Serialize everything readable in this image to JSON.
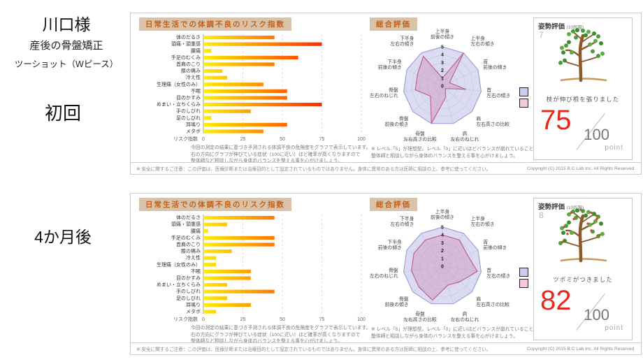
{
  "left": {
    "client_name": "川口様",
    "treatment": "産後の骨盤矯正",
    "plan": "ツーショット（Wピース）"
  },
  "colors": {
    "accent_red": "#e8281c",
    "title_strip_bg": "#d9c3a8",
    "title_text": "#c2601c",
    "bar_gradient_start": "#ffee00",
    "radar_reference_fill": "#dadaf1",
    "radar_reference_stroke": "#9a9ad2",
    "radar_data_stroke": "#c05f98"
  },
  "notes": {
    "bar": [
      "今回の測定の結果に基づき予測される体調不良の危険度をグラフで表示しています。",
      "右の方向にグラフが伸びている症状（100に近い）ほど確率が高くなりますので",
      "整体師など相談しながら身体のバランスを整える事を心がけましょう。"
    ],
    "radar": [
      "※ レベル「5」が理想型。レベル「0」に近いほどバランスが崩れていることを示しています。",
      "整体師と相談しながら身体のバランスを整える事を心がけましょう。"
    ],
    "safety": "※ 安全に関するご注意：この評価は、医療診断または治療目的として設定されているものではありません。身体に異常のある方は医師に相談の上、参考に使ってください。",
    "copyright": "Copyright (C) 2015 B.C Lab Inc. All Rights Reserved."
  },
  "panels": [
    {
      "session_label": "初回",
      "posture": {
        "title": "姿勢評価",
        "scale_note": "(10段階)",
        "level": "7",
        "tree_icon": "young-tree-icon",
        "caption": "枝が伸び根を張りました",
        "score": "75",
        "score_max": "100",
        "unit": "point"
      }
    },
    {
      "session_label": "4か月後",
      "posture": {
        "title": "姿勢評価",
        "scale_note": "(10段階)",
        "level": "8",
        "tree_icon": "budding-tree-icon",
        "caption": "ツボミがつきました",
        "score": "82",
        "score_max": "100",
        "unit": "point"
      }
    }
  ],
  "chart_data": [
    {
      "type": "bar",
      "orientation": "horizontal",
      "title": "日常生活での体調不良のリスク指数",
      "categories": [
        "体のだるさ",
        "頭痛・頭重感",
        "腰痛",
        "手足のむくみ",
        "首肩のこり",
        "膝の痛み",
        "冷え性",
        "生理痛（女性のみ）",
        "不眠",
        "目のかすみ",
        "めまい・立ちくらみ",
        "手のしびれ",
        "足のしびれ",
        "耳鳴り",
        "メタボ"
      ],
      "values": [
        45,
        75,
        5,
        60,
        45,
        12,
        15,
        38,
        53,
        53,
        75,
        30,
        5,
        53,
        38
      ],
      "xlabel": "リスク指数",
      "xlim": [
        0,
        100
      ],
      "xticks": [
        0,
        25,
        50,
        75,
        100
      ],
      "grid": "dashed-vertical"
    },
    {
      "type": "radar",
      "title": "総合評価",
      "categories": [
        "上半身 前後の傾き",
        "上半身 左右の傾き",
        "首 前後の傾き",
        "首 左右の傾き",
        "肩 左右高さの比較",
        "肩 左右のねじれ",
        "骨盤 左右高さの比較",
        "骨盤 前後の傾き",
        "骨盤 左右のねじれ",
        "下半身 前後の傾き",
        "下半身 左右の傾き"
      ],
      "rlim": [
        0,
        5
      ],
      "rticks": [
        0,
        1,
        2,
        3,
        4,
        5
      ],
      "series": [
        {
          "name": "reference-outline",
          "values": [
            5,
            5,
            5,
            5,
            5,
            5,
            5,
            5,
            5,
            5,
            5
          ]
        },
        {
          "name": "measurement",
          "values": [
            1,
            5,
            1,
            3,
            0.5,
            1.5,
            5,
            2,
            3.5,
            3.5,
            4.5
          ]
        }
      ],
      "legend_position": "right"
    },
    {
      "type": "bar",
      "orientation": "horizontal",
      "title": "日常生活での体調不良のリスク指数",
      "categories": [
        "体のだるさ",
        "頭痛・頭重感",
        "腰痛",
        "手足のむくみ",
        "首肩のこり",
        "膝の痛み",
        "冷え性",
        "生理痛（女性のみ）",
        "不眠",
        "目のかすみ",
        "めまい・立ちくらみ",
        "手のしびれ",
        "足のしびれ",
        "耳鳴り",
        "メタボ"
      ],
      "values": [
        45,
        15,
        3,
        45,
        45,
        18,
        8,
        8,
        30,
        30,
        15,
        45,
        15,
        30,
        8
      ],
      "xlabel": "リスク指数",
      "xlim": [
        0,
        100
      ],
      "xticks": [
        0,
        25,
        50,
        75,
        100
      ],
      "grid": "dashed-vertical"
    },
    {
      "type": "radar",
      "title": "総合評価",
      "categories": [
        "上半身 前後の傾き",
        "上半身 左右の傾き",
        "首 前後の傾き",
        "首 左右の傾き",
        "肩 左右高さの比較",
        "肩 左右のねじれ",
        "骨盤 左右高さの比較",
        "骨盤 前後の傾き",
        "骨盤 左右のねじれ",
        "下半身 前後の傾き",
        "下半身 左右の傾き"
      ],
      "rlim": [
        0,
        5
      ],
      "rticks": [
        0,
        1,
        2,
        3,
        4,
        5
      ],
      "series": [
        {
          "name": "reference-outline",
          "values": [
            5,
            5,
            5,
            5,
            5,
            5,
            5,
            5,
            5,
            5,
            5
          ]
        },
        {
          "name": "measurement",
          "values": [
            4,
            4,
            3.5,
            4.5,
            3,
            2.5,
            4.5,
            4,
            4,
            4,
            4
          ]
        }
      ],
      "legend_position": "right"
    }
  ]
}
